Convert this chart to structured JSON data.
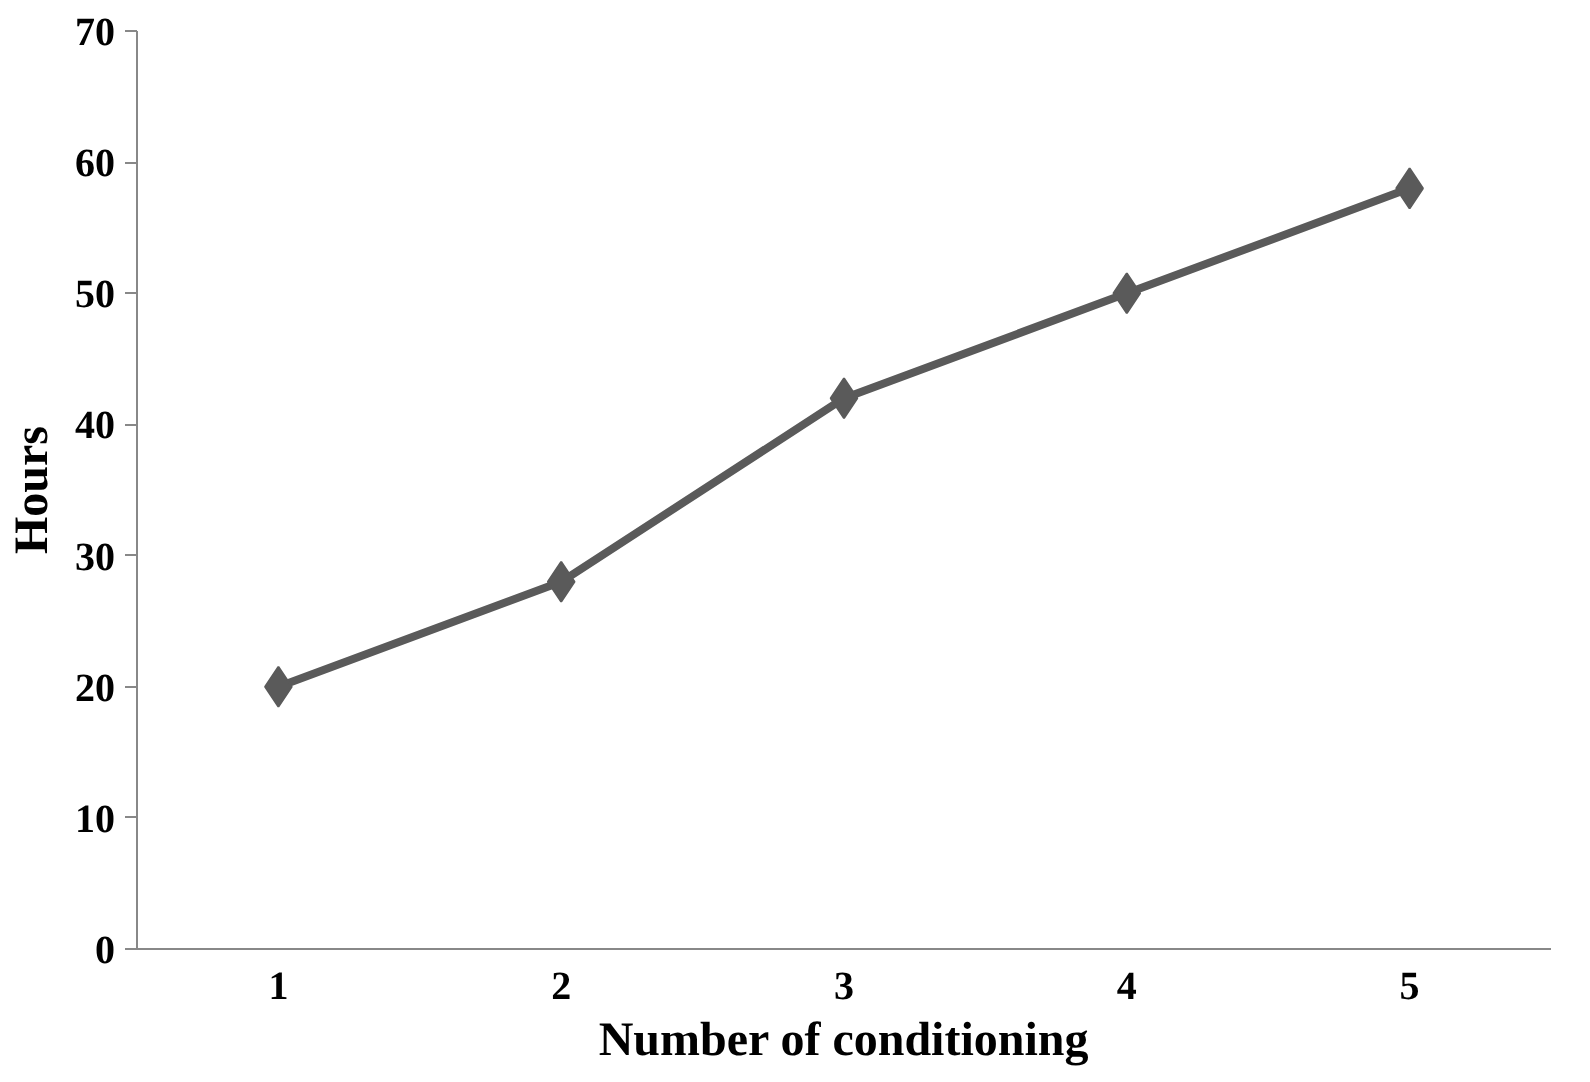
{
  "chart_data": {
    "type": "line",
    "xlabel": "Number of conditioning",
    "ylabel": "Hours",
    "categories": [
      "1",
      "2",
      "3",
      "4",
      "5"
    ],
    "series": [
      {
        "color": "#5a5a5a",
        "values": [
          20,
          28,
          42,
          50,
          58
        ]
      }
    ],
    "ylim": [
      0,
      70
    ],
    "yticks": [
      0,
      10,
      20,
      30,
      40,
      50,
      60,
      70
    ],
    "grid": false,
    "marker": "diamond",
    "line_style": "solid"
  }
}
